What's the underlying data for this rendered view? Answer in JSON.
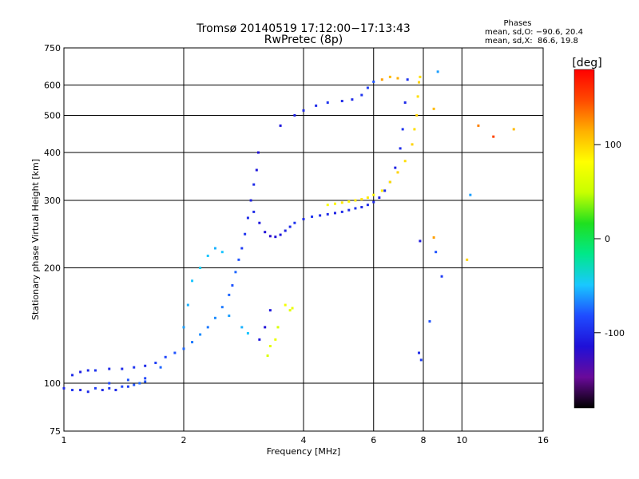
{
  "chart_data": {
    "type": "scatter",
    "title": "Tromsø 20140519 17:12:00−17:13:43",
    "subtitle": "RwPretec (8p)",
    "xlabel": "Frequency [MHz]",
    "ylabel": "Stationary phase Virtual Height [km]",
    "x_scale": "log",
    "y_scale": "log",
    "xlim": [
      1,
      16
    ],
    "ylim": [
      75,
      750
    ],
    "x_ticks": [
      1,
      2,
      4,
      6,
      8,
      10,
      16
    ],
    "y_ticks": [
      75,
      100,
      200,
      300,
      400,
      500,
      600,
      750
    ],
    "grid": true,
    "phase_info": {
      "title": "Phases",
      "line1": "mean, sd,O: −90.6, 20.4",
      "line2": "mean, sd,X:  86.6, 19.8"
    },
    "colorbar": {
      "label": "[deg]",
      "range": [
        -180,
        180
      ],
      "ticks": [
        100,
        0,
        -100
      ],
      "colormap": [
        "#000000",
        "#6a0a9a",
        "#1f10d8",
        "#1f4cff",
        "#19c8ff",
        "#00e88a",
        "#1fe01f",
        "#c8ff00",
        "#ffff00",
        "#ffb000",
        "#ff4a00",
        "#ff0000"
      ]
    },
    "series": [
      {
        "points": [
          [
            1.0,
            97,
            -100
          ],
          [
            1.05,
            96,
            -95
          ],
          [
            1.1,
            96,
            -105
          ],
          [
            1.15,
            95,
            -100
          ],
          [
            1.2,
            97,
            -90
          ],
          [
            1.25,
            96,
            -100
          ],
          [
            1.3,
            97,
            -95
          ],
          [
            1.35,
            96,
            -100
          ],
          [
            1.4,
            98,
            -85
          ],
          [
            1.45,
            98,
            -90
          ],
          [
            1.5,
            99,
            -80
          ],
          [
            1.55,
            100,
            -75
          ],
          [
            1.6,
            101,
            -80
          ],
          [
            1.05,
            105,
            -100
          ],
          [
            1.1,
            107,
            -105
          ],
          [
            1.15,
            108,
            -100
          ],
          [
            1.2,
            108,
            -95
          ],
          [
            1.3,
            109,
            -100
          ],
          [
            1.4,
            109,
            -100
          ],
          [
            1.5,
            110,
            -95
          ],
          [
            1.6,
            111,
            -100
          ],
          [
            1.7,
            113,
            -90
          ],
          [
            1.8,
            117,
            -85
          ],
          [
            1.9,
            120,
            -80
          ],
          [
            2.0,
            123,
            -75
          ],
          [
            2.1,
            128,
            -70
          ],
          [
            2.2,
            134,
            -65
          ],
          [
            2.3,
            140,
            -70
          ],
          [
            2.4,
            148,
            -65
          ],
          [
            2.5,
            158,
            -70
          ],
          [
            2.6,
            170,
            -75
          ],
          [
            2.65,
            180,
            -80
          ],
          [
            2.7,
            195,
            -75
          ],
          [
            2.75,
            210,
            -80
          ],
          [
            2.8,
            225,
            -90
          ],
          [
            2.85,
            245,
            -95
          ],
          [
            2.9,
            270,
            -100
          ],
          [
            2.95,
            300,
            -105
          ],
          [
            3.0,
            330,
            -100
          ],
          [
            3.05,
            360,
            -110
          ],
          [
            3.08,
            400,
            -115
          ],
          [
            3.0,
            280,
            -100
          ],
          [
            3.1,
            262,
            -110
          ],
          [
            3.2,
            248,
            -115
          ],
          [
            3.3,
            242,
            -120
          ],
          [
            3.4,
            241,
            -115
          ],
          [
            3.5,
            244,
            -110
          ],
          [
            3.6,
            250,
            -105
          ],
          [
            3.7,
            256,
            -100
          ],
          [
            3.8,
            262,
            -95
          ],
          [
            4.0,
            268,
            -100
          ],
          [
            4.2,
            272,
            -95
          ],
          [
            4.4,
            274,
            -100
          ],
          [
            4.6,
            276,
            -100
          ],
          [
            4.8,
            278,
            -105
          ],
          [
            5.0,
            280,
            -100
          ],
          [
            5.2,
            283,
            -100
          ],
          [
            5.4,
            286,
            -95
          ],
          [
            5.6,
            288,
            -100
          ],
          [
            5.8,
            292,
            -100
          ],
          [
            6.0,
            297,
            -100
          ],
          [
            6.2,
            305,
            -105
          ],
          [
            6.4,
            318,
            -100
          ],
          [
            6.6,
            335,
            -100
          ],
          [
            6.8,
            365,
            -105
          ],
          [
            7.0,
            410,
            -100
          ],
          [
            7.1,
            460,
            -95
          ],
          [
            7.2,
            540,
            -100
          ],
          [
            7.3,
            620,
            -95
          ],
          [
            3.5,
            470,
            -110
          ],
          [
            3.8,
            500,
            -105
          ],
          [
            4.0,
            515,
            -100
          ],
          [
            4.3,
            530,
            -100
          ],
          [
            4.6,
            540,
            -95
          ],
          [
            5.0,
            545,
            -100
          ],
          [
            5.3,
            550,
            -100
          ],
          [
            5.6,
            565,
            -95
          ],
          [
            5.8,
            590,
            -90
          ],
          [
            6.0,
            612,
            -80
          ],
          [
            1.3,
            100,
            -85
          ],
          [
            1.45,
            102,
            -80
          ],
          [
            1.6,
            103,
            -85
          ],
          [
            1.75,
            110,
            -75
          ],
          [
            2.0,
            140,
            -60
          ],
          [
            2.05,
            160,
            -55
          ],
          [
            2.1,
            185,
            -50
          ],
          [
            2.2,
            200,
            -45
          ],
          [
            2.3,
            215,
            -50
          ],
          [
            2.4,
            225,
            -55
          ],
          [
            2.5,
            220,
            -50
          ],
          [
            2.6,
            150,
            -60
          ],
          [
            2.8,
            140,
            -55
          ],
          [
            2.9,
            135,
            -50
          ],
          [
            3.1,
            130,
            -110
          ],
          [
            3.2,
            140,
            -115
          ],
          [
            3.3,
            155,
            -110
          ],
          [
            3.25,
            118,
            60
          ],
          [
            3.3,
            125,
            65
          ],
          [
            3.4,
            130,
            70
          ],
          [
            3.45,
            140,
            60
          ],
          [
            3.6,
            160,
            75
          ],
          [
            3.7,
            155,
            65
          ],
          [
            3.75,
            157,
            70
          ],
          [
            4.6,
            292,
            80
          ],
          [
            4.8,
            294,
            85
          ],
          [
            5.0,
            296,
            90
          ],
          [
            5.2,
            298,
            85
          ],
          [
            5.4,
            300,
            90
          ],
          [
            5.6,
            302,
            95
          ],
          [
            5.8,
            305,
            90
          ],
          [
            6.0,
            310,
            85
          ],
          [
            6.3,
            318,
            90
          ],
          [
            6.6,
            335,
            95
          ],
          [
            6.9,
            355,
            100
          ],
          [
            7.2,
            380,
            95
          ],
          [
            7.5,
            420,
            100
          ],
          [
            7.6,
            460,
            95
          ],
          [
            7.7,
            500,
            100
          ],
          [
            7.75,
            560,
            95
          ],
          [
            7.8,
            610,
            100
          ],
          [
            7.85,
            630,
            95
          ],
          [
            6.3,
            620,
            120
          ],
          [
            6.6,
            630,
            110
          ],
          [
            6.9,
            625,
            115
          ],
          [
            7.8,
            120,
            -100
          ],
          [
            7.9,
            115,
            -90
          ],
          [
            7.85,
            235,
            -110
          ],
          [
            8.5,
            240,
            120
          ],
          [
            8.6,
            220,
            -80
          ],
          [
            8.9,
            190,
            -90
          ],
          [
            8.3,
            145,
            -80
          ],
          [
            8.5,
            520,
            110
          ],
          [
            8.7,
            650,
            -60
          ],
          [
            11.0,
            470,
            130
          ],
          [
            12.0,
            440,
            150
          ],
          [
            13.5,
            460,
            110
          ],
          [
            10.5,
            310,
            -60
          ],
          [
            10.3,
            210,
            100
          ]
        ]
      }
    ]
  }
}
